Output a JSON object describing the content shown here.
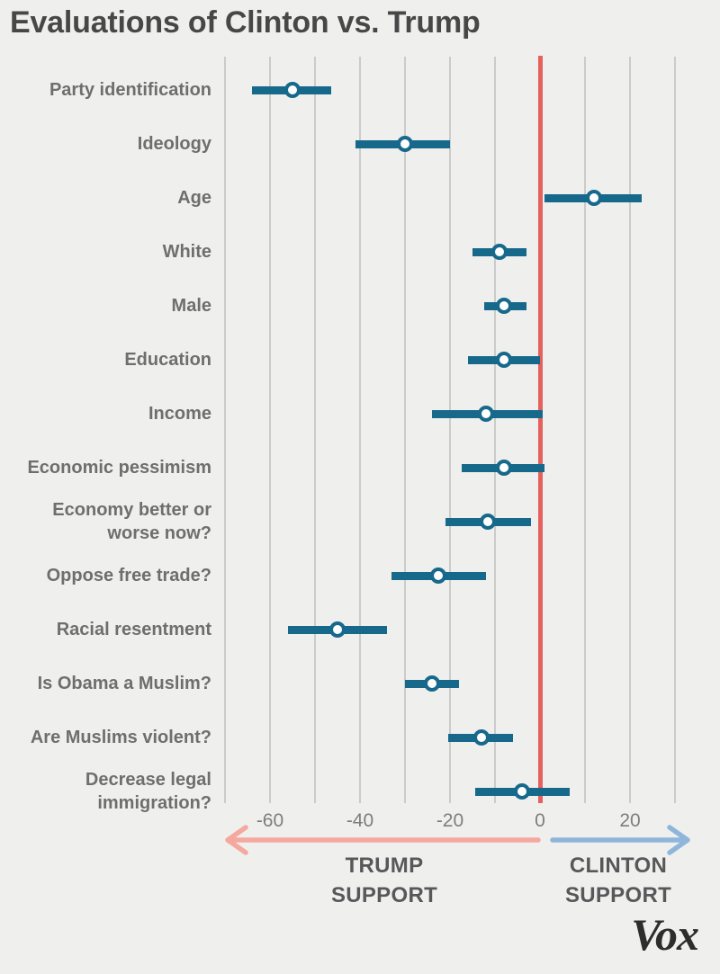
{
  "title": "Evaluations of Clinton vs. Trump",
  "brand": {
    "logo_text": "Vox"
  },
  "annotations": {
    "trump_label": "TRUMP SUPPORT",
    "clinton_label": "CLINTON SUPPORT"
  },
  "chart_data": {
    "type": "scatter",
    "subtype": "dot-plot-with-horizontal-error-bars",
    "title": "Evaluations of Clinton vs. Trump",
    "orientation": "horizontal",
    "xlim": [
      -77,
      33
    ],
    "xticks": [
      -60,
      -40,
      -20,
      0,
      20
    ],
    "gridlines": [
      -70,
      -60,
      -50,
      -40,
      -30,
      -20,
      -10,
      10,
      20,
      30
    ],
    "zero_reference_line": 0,
    "legend": "none",
    "grid": "vertical-on",
    "negative_direction_label": "TRUMP SUPPORT",
    "positive_direction_label": "CLINTON SUPPORT",
    "points": [
      {
        "label": "Party identification",
        "estimate": -55,
        "ci_low": -64,
        "ci_high": -46.5
      },
      {
        "label": "Ideology",
        "estimate": -30,
        "ci_low": -41,
        "ci_high": -20
      },
      {
        "label": "Age",
        "estimate": 12,
        "ci_low": 1,
        "ci_high": 22.5
      },
      {
        "label": "White",
        "estimate": -9,
        "ci_low": -15,
        "ci_high": -3
      },
      {
        "label": "Male",
        "estimate": -8,
        "ci_low": -12.5,
        "ci_high": -3
      },
      {
        "label": "Education",
        "estimate": -8,
        "ci_low": -16,
        "ci_high": 0
      },
      {
        "label": "Income",
        "estimate": -12,
        "ci_low": -24,
        "ci_high": 0.5
      },
      {
        "label": "Economic pessimism",
        "estimate": -8,
        "ci_low": -17.5,
        "ci_high": 1
      },
      {
        "label": "Economy better or worse now?",
        "estimate": -11.5,
        "ci_low": -21,
        "ci_high": -2
      },
      {
        "label": "Oppose free trade?",
        "estimate": -22.5,
        "ci_low": -33,
        "ci_high": -12
      },
      {
        "label": "Racial resentment",
        "estimate": -45,
        "ci_low": -56,
        "ci_high": -34
      },
      {
        "label": "Is Obama a Muslim?",
        "estimate": -24,
        "ci_low": -30,
        "ci_high": -18
      },
      {
        "label": "Are Muslims violent?",
        "estimate": -13,
        "ci_low": -20.5,
        "ci_high": -6
      },
      {
        "label": "Decrease legal immigration?",
        "estimate": -4,
        "ci_low": -14.5,
        "ci_high": 6.5
      }
    ]
  },
  "colors": {
    "background": "#eff0ee",
    "teal": "#17698c",
    "dotfill": "#ffffff",
    "red": "#e4615e",
    "pink": "#f5a89f",
    "blue": "#8fb6da",
    "grid": "#cbccca",
    "title": "#474747",
    "label": "#6e6e6e",
    "tick": "#7d7d7d",
    "axislabel": "#58585a",
    "logo": "#2d2d2d"
  }
}
